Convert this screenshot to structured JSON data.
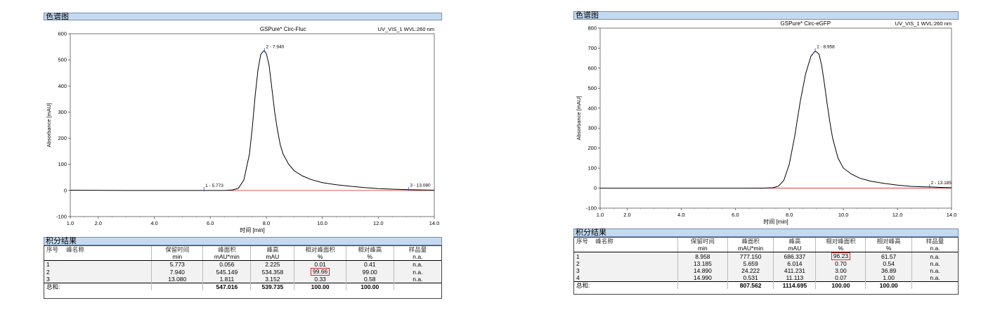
{
  "panels": [
    {
      "id": "left",
      "section_title": "色谱图",
      "chart_title": "GSPure* Circ-Fluc",
      "channel": "UV_VIS_1 WVL:260 nm",
      "results_title": "积分结果",
      "table": {
        "headers": [
          "序号",
          "峰名称",
          "保留时间",
          "峰面积",
          "峰高",
          "相对峰面积",
          "相对峰高",
          "样品量"
        ],
        "units": [
          "",
          "",
          "min",
          "mAU*min",
          "mAU",
          "%",
          "%",
          "n.a."
        ],
        "rows": [
          [
            "1",
            "",
            "5.773",
            "0.056",
            "2.225",
            "0.01",
            "0.41",
            "n.a."
          ],
          [
            "2",
            "",
            "7.940",
            "545.149",
            "534.358",
            "99.66",
            "99.00",
            "n.a."
          ],
          [
            "3",
            "",
            "13.080",
            "1.811",
            "3.152",
            "0.33",
            "0.58",
            "n.a."
          ]
        ],
        "highlight": {
          "row": 1,
          "col": 5
        },
        "total": [
          "总和:",
          "",
          "",
          "547.016",
          "539.735",
          "100.00",
          "100.00",
          ""
        ]
      }
    },
    {
      "id": "right",
      "section_title": "色谱图",
      "chart_title": "GSPure* Circ-eGFP",
      "channel": "UV_VIS_1 WVL:260 nm",
      "results_title": "积分结果",
      "table": {
        "headers": [
          "序号",
          "峰名称",
          "保留时间",
          "峰面积",
          "峰高",
          "相对峰面积",
          "相对峰高",
          "样品量"
        ],
        "units": [
          "",
          "",
          "min",
          "mAU*min",
          "mAU",
          "%",
          "%",
          "n.a."
        ],
        "rows": [
          [
            "1",
            "",
            "8.958",
            "777.150",
            "686.337",
            "96.23",
            "61.57",
            "n.a."
          ],
          [
            "2",
            "",
            "13.185",
            "5.659",
            "6.014",
            "0.70",
            "0.54",
            "n.a."
          ],
          [
            "3",
            "",
            "14.890",
            "24.222",
            "411.231",
            "3.00",
            "36.89",
            "n.a."
          ],
          [
            "4",
            "",
            "14.990",
            "0.531",
            "11.113",
            "0.07",
            "1.00",
            "n.a."
          ]
        ],
        "highlight": {
          "row": 0,
          "col": 5
        },
        "total": [
          "总和:",
          "",
          "",
          "807.562",
          "1114.695",
          "100.00",
          "100.00",
          ""
        ]
      }
    }
  ],
  "chart_data": [
    {
      "type": "line",
      "title": "GSPure* Circ-Fluc",
      "subtitle": "UV_VIS_1 WVL:260 nm",
      "xlabel": "时间 [min]",
      "ylabel": "Absorbance [mAU]",
      "xlim": [
        1.0,
        14.0
      ],
      "ylim": [
        -100,
        600
      ],
      "xticks": [
        1.0,
        2.0,
        4.0,
        6.0,
        8.0,
        10.0,
        12.0,
        14.0
      ],
      "yticks": [
        -100,
        0,
        100,
        200,
        300,
        400,
        500,
        600
      ],
      "grid": false,
      "series": [
        {
          "x": [
            1.0,
            3.0,
            5.0,
            6.0,
            6.5,
            6.8,
            7.0,
            7.2,
            7.4,
            7.5,
            7.6,
            7.7,
            7.8,
            7.9,
            7.94,
            8.0,
            8.1,
            8.2,
            8.3,
            8.4,
            8.5,
            8.6,
            8.8,
            9.0,
            9.3,
            9.6,
            10.0,
            10.5,
            11.0,
            11.5,
            12.0,
            12.5,
            13.08,
            13.5,
            14.0
          ],
          "y": [
            1,
            0,
            0,
            0,
            0,
            2,
            8,
            40,
            140,
            240,
            360,
            460,
            520,
            534,
            534,
            525,
            480,
            390,
            300,
            230,
            175,
            140,
            100,
            75,
            55,
            42,
            30,
            22,
            16,
            11,
            7,
            5,
            3,
            2,
            1
          ]
        }
      ],
      "peaks": [
        {
          "label": "1 - 5.773",
          "x": 5.773,
          "y": 2
        },
        {
          "label": "2 - 7.940",
          "x": 7.94,
          "y": 534
        },
        {
          "label": "3 - 13.080",
          "x": 13.08,
          "y": 3
        }
      ]
    },
    {
      "type": "line",
      "title": "GSPure* Circ-eGFP",
      "subtitle": "UV_VIS_1 WVL:260 nm",
      "xlabel": "时间 [min]",
      "ylabel": "Absorbance [mAU]",
      "xlim": [
        1.0,
        14.0
      ],
      "ylim": [
        -100,
        800
      ],
      "xticks": [
        1.0,
        2.0,
        4.0,
        6.0,
        8.0,
        10.0,
        12.0,
        14.0
      ],
      "yticks": [
        -100,
        0,
        100,
        200,
        300,
        400,
        500,
        600,
        700,
        800
      ],
      "grid": false,
      "series": [
        {
          "x": [
            1.0,
            3.0,
            5.0,
            7.0,
            7.4,
            7.6,
            7.8,
            8.0,
            8.2,
            8.4,
            8.6,
            8.8,
            8.958,
            9.1,
            9.2,
            9.3,
            9.4,
            9.5,
            9.6,
            9.8,
            10.0,
            10.3,
            10.6,
            11.0,
            11.5,
            12.0,
            12.5,
            13.0,
            13.185,
            13.5,
            14.0
          ],
          "y": [
            0,
            0,
            0,
            0,
            2,
            10,
            40,
            120,
            260,
            430,
            570,
            660,
            686,
            670,
            610,
            520,
            420,
            330,
            250,
            150,
            100,
            70,
            50,
            35,
            24,
            15,
            9,
            6,
            6,
            4,
            2
          ]
        }
      ],
      "peaks": [
        {
          "label": "1 - 8.958",
          "x": 8.958,
          "y": 686
        },
        {
          "label": "2 - 13.185",
          "x": 13.185,
          "y": 6
        }
      ]
    }
  ]
}
